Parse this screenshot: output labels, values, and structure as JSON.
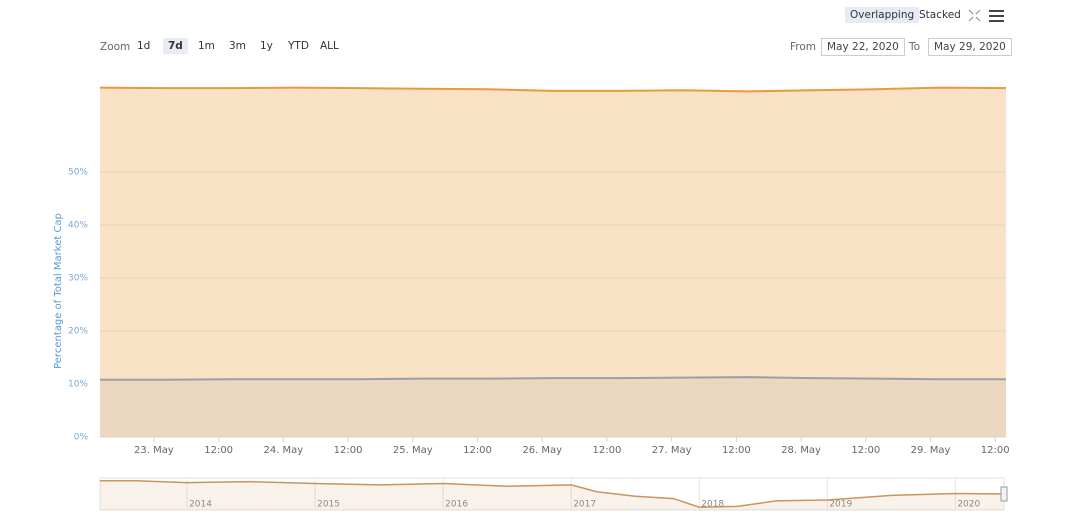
{
  "range_selector": {
    "zoom_label": "Zoom",
    "buttons": [
      "1d",
      "7d",
      "1m",
      "3m",
      "1y",
      "YTD",
      "ALL"
    ],
    "selected": "7d",
    "from_label": "From",
    "from": "May 22, 2020",
    "to_label": "To",
    "to": "May 29, 2020",
    "modes": [
      "Overlapping",
      "Stacked"
    ],
    "selected_mode": "Overlapping"
  },
  "chart_data": [
    {
      "type": "area",
      "y_label": "Percentage of Total Market Cap",
      "x": [
        "2020-05-22T14:00",
        "2020-05-23T02:00",
        "2020-05-23T14:00",
        "2020-05-24T02:00",
        "2020-05-24T14:00",
        "2020-05-25T02:00",
        "2020-05-25T14:00",
        "2020-05-26T02:00",
        "2020-05-26T14:00",
        "2020-05-27T02:00",
        "2020-05-27T14:00",
        "2020-05-28T02:00",
        "2020-05-28T14:00",
        "2020-05-29T02:00",
        "2020-05-29T14:00"
      ],
      "series": [
        {
          "color": "#e89a3c",
          "values": [
            65.9,
            65.8,
            65.8,
            65.9,
            65.8,
            65.7,
            65.6,
            65.3,
            65.3,
            65.4,
            65.2,
            65.4,
            65.6,
            65.9,
            65.8
          ]
        },
        {
          "color": "#9a9fa6",
          "values": [
            10.8,
            10.8,
            10.9,
            10.9,
            10.9,
            11.0,
            11.0,
            11.1,
            11.1,
            11.2,
            11.3,
            11.1,
            11.0,
            10.9,
            10.9
          ]
        }
      ],
      "xlim": [
        "2020-05-22T14:00",
        "2020-05-29T14:00"
      ],
      "xticks": [
        {
          "value": "2020-05-23T00:00",
          "label": "23. May"
        },
        {
          "value": "2020-05-23T12:00",
          "label": "12:00"
        },
        {
          "value": "2020-05-24T00:00",
          "label": "24. May"
        },
        {
          "value": "2020-05-24T12:00",
          "label": "12:00"
        },
        {
          "value": "2020-05-25T00:00",
          "label": "25. May"
        },
        {
          "value": "2020-05-25T12:00",
          "label": "12:00"
        },
        {
          "value": "2020-05-26T00:00",
          "label": "26. May"
        },
        {
          "value": "2020-05-26T12:00",
          "label": "12:00"
        },
        {
          "value": "2020-05-27T00:00",
          "label": "27. May"
        },
        {
          "value": "2020-05-27T12:00",
          "label": "12:00"
        },
        {
          "value": "2020-05-28T00:00",
          "label": "28. May"
        },
        {
          "value": "2020-05-28T12:00",
          "label": "12:00"
        },
        {
          "value": "2020-05-29T00:00",
          "label": "29. May"
        },
        {
          "value": "2020-05-29T12:00",
          "label": "12:00"
        }
      ],
      "ylim": [
        0,
        66.4
      ],
      "yticks": [
        {
          "value": 0,
          "label": "0%"
        },
        {
          "value": 10,
          "label": "10%"
        },
        {
          "value": 20,
          "label": "20%"
        },
        {
          "value": 30,
          "label": "30%"
        },
        {
          "value": 40,
          "label": "40%"
        },
        {
          "value": 50,
          "label": "50%"
        }
      ],
      "grid": true
    },
    {
      "type": "navigator",
      "x": [
        2013.32,
        2013.6,
        2014.0,
        2014.5,
        2015.0,
        2015.5,
        2016.0,
        2016.5,
        2017.0,
        2017.2,
        2017.5,
        2017.8,
        2018.0,
        2018.3,
        2018.6,
        2019.0,
        2019.5,
        2020.0,
        2020.38
      ],
      "series": [
        {
          "color": "#c9955a",
          "values": [
            94,
            94,
            90,
            92,
            88,
            85,
            88,
            82,
            85,
            70,
            60,
            55,
            36,
            38,
            50,
            52,
            62,
            66,
            65
          ]
        }
      ],
      "xlim": [
        2013.32,
        2020.38
      ],
      "ylim": [
        30,
        100
      ],
      "xticks": [
        2014,
        2015,
        2016,
        2017,
        2018,
        2019,
        2020
      ]
    }
  ]
}
